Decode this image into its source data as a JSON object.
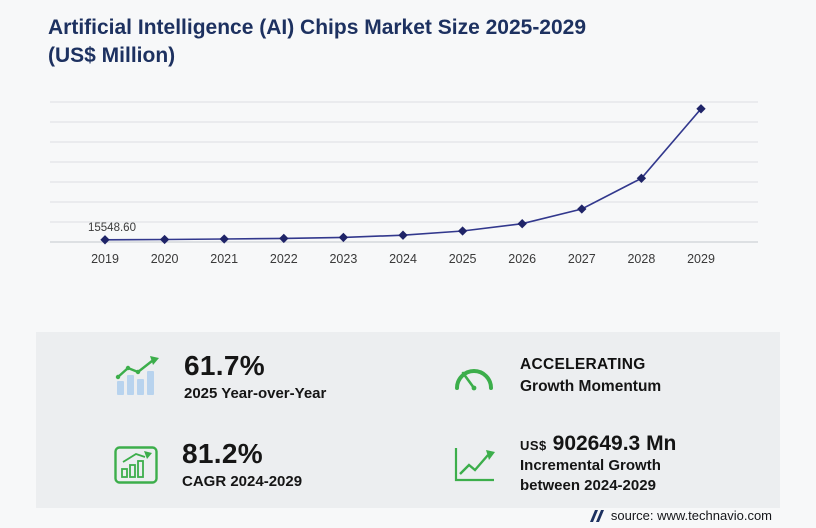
{
  "header": {
    "title_line1": "Artificial Intelligence (AI) Chips Market Size 2025-2029",
    "title_line2": "(US$ Million)"
  },
  "chart_data": {
    "type": "line",
    "title": "Artificial Intelligence (AI) Chips Market Size 2025-2029 (US$ Million)",
    "categories": [
      "2019",
      "2020",
      "2021",
      "2022",
      "2023",
      "2024",
      "2025",
      "2026",
      "2027",
      "2028",
      "2029"
    ],
    "values": [
      15548.6,
      18200,
      21500,
      26000,
      32500,
      48688,
      78729,
      131000,
      236000,
      455000,
      951337
    ],
    "first_point_label": "15548.60",
    "xlabel": "",
    "ylabel": "",
    "ylim": [
      0,
      1000000
    ],
    "grid": "horizontal",
    "legend": "none",
    "line_color": "#32388d",
    "marker": "diamond",
    "marker_color": "#1f2468"
  },
  "stats": {
    "yoy": {
      "icon": "bar-chart-growth-icon",
      "value": "61.7%",
      "label": "2025 Year-over-Year"
    },
    "momentum": {
      "icon": "speedometer-icon",
      "value": "ACCELERATING",
      "label": "Growth Momentum"
    },
    "cagr": {
      "icon": "chart-box-icon",
      "value": "81.2%",
      "label": "CAGR 2024-2029"
    },
    "incremental": {
      "icon": "line-chart-arrow-icon",
      "currency": "US$",
      "value": "902649.3 Mn",
      "label_line1": "Incremental Growth",
      "label_line2": "between 2024-2029"
    }
  },
  "footer": {
    "source": "source: www.technavio.com"
  },
  "colors": {
    "title_navy": "#1d3160",
    "accent_green": "#3cae4b",
    "chart_line": "#32388d",
    "chart_marker": "#1f2468",
    "light_blue_bars": "#b8d3ee",
    "panel_bg": "#eceef0"
  }
}
